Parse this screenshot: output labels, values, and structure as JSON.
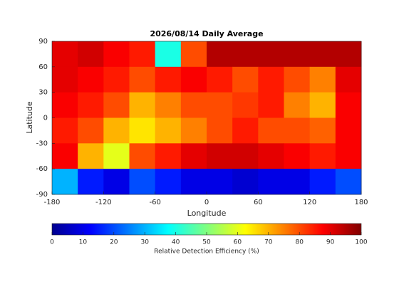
{
  "chart_data": {
    "type": "heatmap",
    "title": "2026/08/14 Daily Average",
    "xlabel": "Longitude",
    "ylabel": "Latitude",
    "x": [
      -165,
      -135,
      -105,
      -75,
      -45,
      -15,
      15,
      45,
      75,
      105,
      135,
      165
    ],
    "y": [
      75,
      45,
      15,
      -15,
      -45,
      -75
    ],
    "values": [
      [
        90,
        92,
        88,
        85,
        40,
        80,
        95,
        95,
        95,
        95,
        95,
        95
      ],
      [
        90,
        88,
        85,
        80,
        85,
        88,
        85,
        80,
        85,
        80,
        75,
        90
      ],
      [
        88,
        85,
        80,
        70,
        75,
        80,
        80,
        82,
        85,
        75,
        70,
        88
      ],
      [
        85,
        80,
        70,
        65,
        70,
        75,
        80,
        85,
        80,
        80,
        78,
        88
      ],
      [
        88,
        70,
        60,
        80,
        85,
        90,
        92,
        92,
        90,
        88,
        85,
        88
      ],
      [
        30,
        15,
        10,
        20,
        15,
        10,
        10,
        8,
        10,
        10,
        15,
        20
      ]
    ],
    "xlim": [
      -180,
      180
    ],
    "xticks": [
      -180,
      -120,
      -60,
      0,
      60,
      120,
      180
    ],
    "ylim": [
      -90,
      90
    ],
    "yticks": [
      -90,
      -60,
      -30,
      0,
      30,
      60,
      90
    ],
    "colormap": "jet",
    "colorbar": {
      "label": "Relative Detection Efficiency (%)",
      "clim": [
        0,
        100
      ],
      "ticks": [
        0,
        10,
        20,
        30,
        40,
        50,
        60,
        70,
        80,
        90,
        100
      ]
    }
  }
}
